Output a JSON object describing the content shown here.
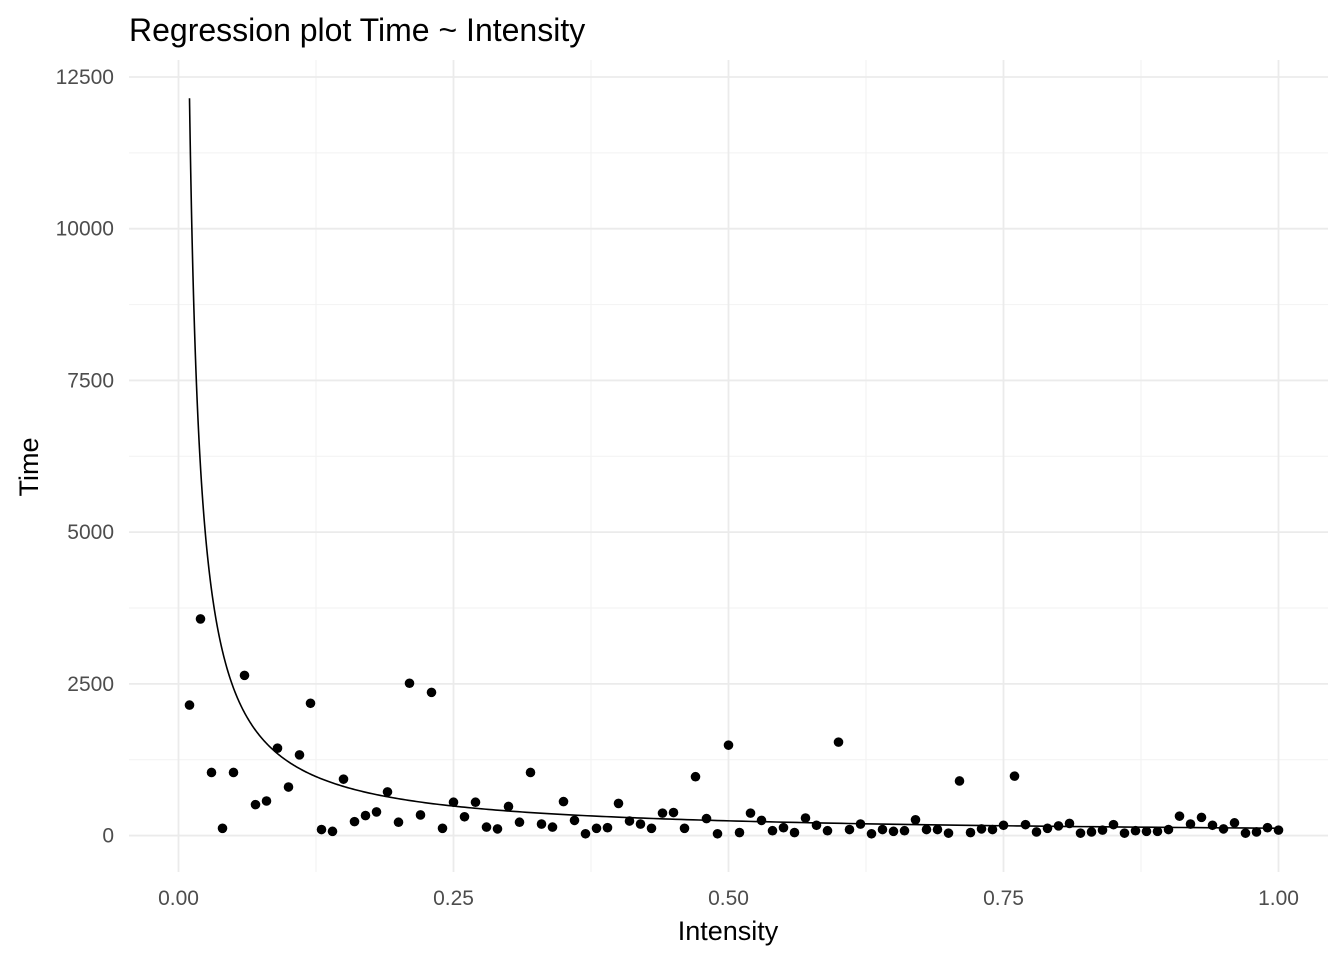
{
  "chart_data": {
    "type": "scatter",
    "title": "Regression plot Time ~ Intensity",
    "xlabel": "Intensity",
    "ylabel": "Time",
    "xlim": [
      -0.045,
      1.045
    ],
    "ylim": [
      -600,
      12780
    ],
    "x_ticks": [
      0.0,
      0.25,
      0.5,
      0.75,
      1.0
    ],
    "x_tick_labels": [
      "0.00",
      "0.25",
      "0.50",
      "0.75",
      "1.00"
    ],
    "y_ticks": [
      0,
      2500,
      5000,
      7500,
      10000,
      12500
    ],
    "y_tick_labels": [
      "0",
      "2500",
      "5000",
      "7500",
      "10000",
      "12500"
    ],
    "grid": true,
    "legend": "none",
    "point_color": "#000000",
    "line_color": "#000000",
    "series": [
      {
        "kind": "points",
        "x": [
          0.01,
          0.02,
          0.03,
          0.04,
          0.05,
          0.06,
          0.07,
          0.08,
          0.09,
          0.1,
          0.11,
          0.12,
          0.13,
          0.14,
          0.15,
          0.16,
          0.17,
          0.18,
          0.19,
          0.2,
          0.21,
          0.22,
          0.23,
          0.24,
          0.25,
          0.26,
          0.27,
          0.28,
          0.29,
          0.3,
          0.31,
          0.32,
          0.33,
          0.34,
          0.35,
          0.36,
          0.37,
          0.38,
          0.39,
          0.4,
          0.41,
          0.42,
          0.43,
          0.44,
          0.45,
          0.46,
          0.47,
          0.48,
          0.49,
          0.5,
          0.51,
          0.52,
          0.53,
          0.54,
          0.55,
          0.56,
          0.57,
          0.58,
          0.59,
          0.6,
          0.61,
          0.62,
          0.63,
          0.64,
          0.65,
          0.66,
          0.67,
          0.68,
          0.69,
          0.7,
          0.71,
          0.72,
          0.73,
          0.74,
          0.75,
          0.76,
          0.77,
          0.78,
          0.79,
          0.8,
          0.81,
          0.82,
          0.83,
          0.84,
          0.85,
          0.86,
          0.87,
          0.88,
          0.89,
          0.9,
          0.91,
          0.92,
          0.93,
          0.94,
          0.95,
          0.96,
          0.97,
          0.98,
          0.99,
          1.0
        ],
        "y": [
          2150,
          3570,
          1040,
          120,
          1040,
          2640,
          510,
          570,
          1440,
          800,
          1330,
          2180,
          100,
          70,
          930,
          230,
          330,
          390,
          720,
          220,
          2510,
          340,
          2360,
          120,
          550,
          310,
          550,
          140,
          110,
          480,
          220,
          1040,
          190,
          140,
          560,
          250,
          30,
          120,
          130,
          530,
          240,
          190,
          120,
          370,
          380,
          120,
          970,
          280,
          30,
          1490,
          50,
          370,
          250,
          80,
          130,
          50,
          290,
          170,
          80,
          1540,
          100,
          190,
          30,
          100,
          70,
          80,
          260,
          100,
          100,
          40,
          900,
          50,
          110,
          100,
          170,
          980,
          180,
          60,
          120,
          160,
          200,
          40,
          60,
          90,
          180,
          40,
          80,
          70,
          70,
          100,
          320,
          190,
          300,
          170,
          110,
          210,
          40,
          60,
          130,
          90
        ]
      },
      {
        "kind": "fit-line",
        "equation": "Time = 121.5 / Intensity",
        "x_range": [
          0.01,
          1.0
        ]
      }
    ]
  }
}
